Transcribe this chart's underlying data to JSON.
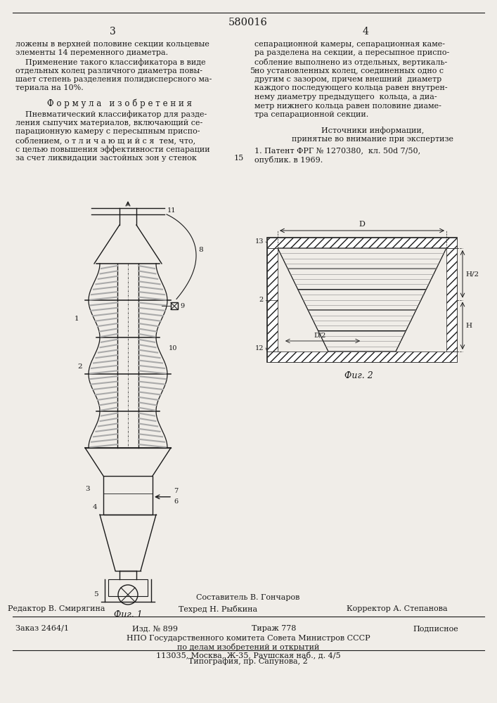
{
  "patent_number": "580016",
  "bg_color": "#f0ede8",
  "text_color": "#1a1a1a",
  "fig1_caption": "Фиг. 1",
  "fig2_caption": "Фиг. 2",
  "footer_composer": "Составитель В. Гончаров",
  "footer_editor": "Редактор В. Смирягина",
  "footer_tech": "Техред Н. Рыбкина",
  "footer_corrector": "Корректор А. Степанова",
  "footer_order": "Заказ 2464/1",
  "footer_izd": "Изд. № 899",
  "footer_tirazh": "Тираж 778",
  "footer_podpisnoe": "Подписное",
  "footer_npo": "НПО Государственного комитета Совета Министров СССР",
  "footer_po": "по делам изобретений и открытий",
  "footer_addr": "113035, Москва, Ж-35, Раушская наб., д. 4/5",
  "footer_tipografia": "Типография, пр. Сапунова, 2"
}
